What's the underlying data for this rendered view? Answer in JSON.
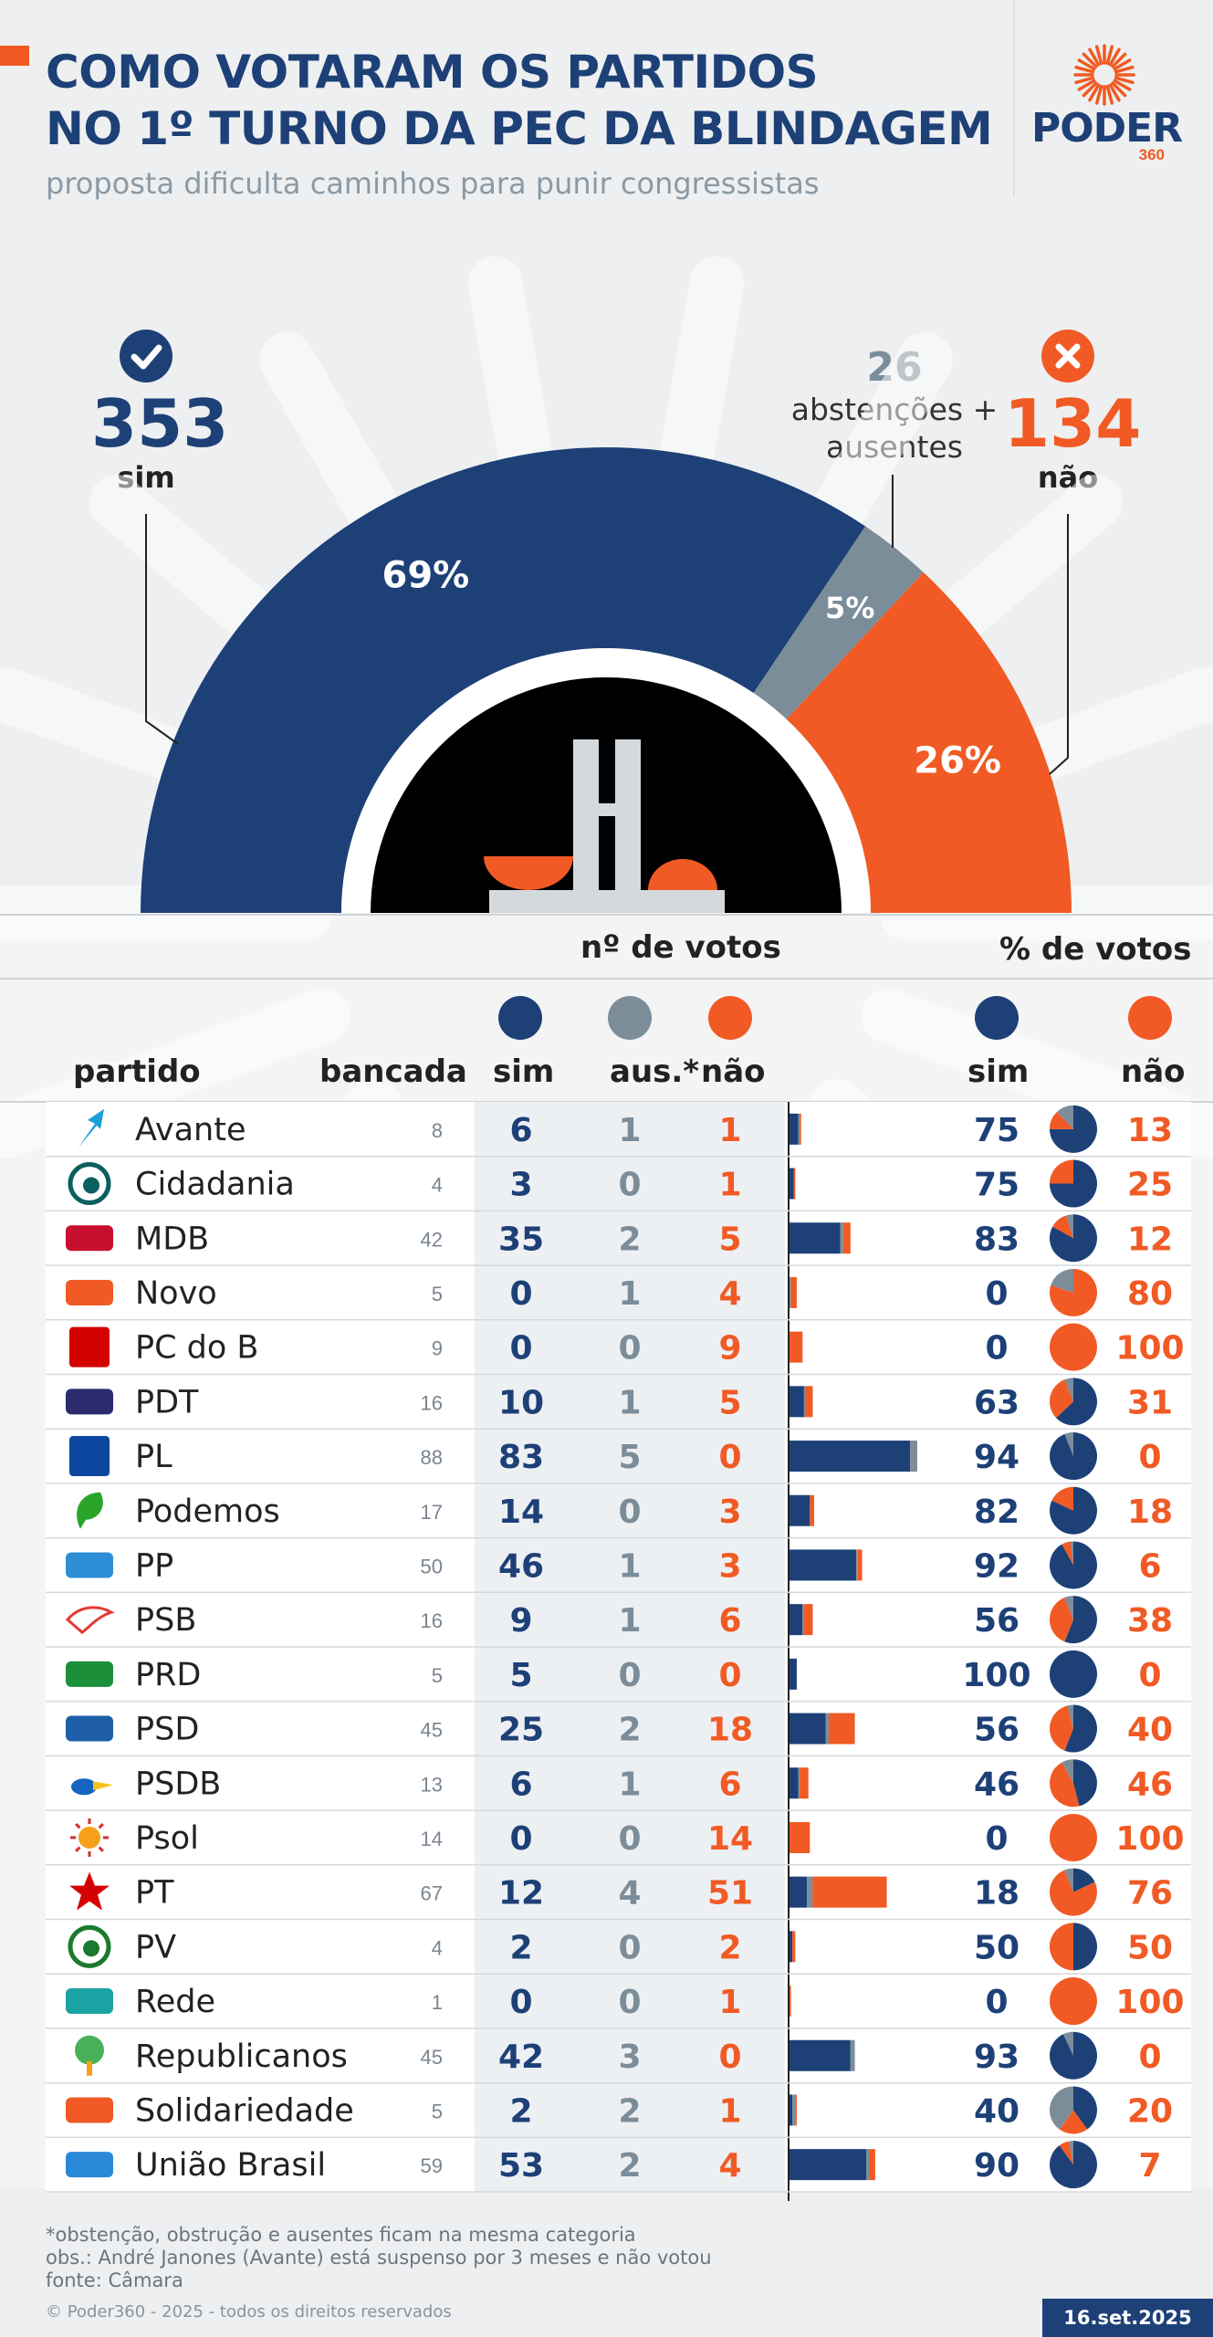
{
  "header": {
    "title_line1": "COMO VOTARAM OS PARTIDOS",
    "title_line2": "NO 1º TURNO DA PEC DA BLINDAGEM",
    "subtitle": "proposta dificulta caminhos para punir congressistas"
  },
  "brand": {
    "name": "PODER",
    "number": "360"
  },
  "totals": {
    "sim_count": "353",
    "sim_label": "sim",
    "abst_count": "26",
    "abst_line1": "abstenções +",
    "abst_line2": "ausentes",
    "nao_count": "134",
    "nao_label": "não"
  },
  "colors": {
    "sim": "#1d4077",
    "abst": "#7c8d9a",
    "nao": "#f15a24",
    "navy": "#1d4077"
  },
  "table_headers": {
    "votes_group": "nº de votos",
    "pct_group": "% de votos",
    "partido": "partido",
    "bancada": "bancada",
    "sim": "sim",
    "aus": "aus.*",
    "nao": "não",
    "pct_sim": "sim",
    "pct_nao": "não"
  },
  "chart_data": [
    {
      "type": "pie",
      "title": "",
      "categories": [
        "sim",
        "abstenções + ausentes",
        "não"
      ],
      "values": [
        353,
        26,
        134
      ],
      "percent_labels": [
        "69%",
        "5%",
        "26%"
      ],
      "colors": [
        "#1d4077",
        "#7c8d9a",
        "#f15a24"
      ]
    },
    {
      "type": "table",
      "columns": [
        "partido",
        "bancada",
        "sim",
        "aus.*",
        "não",
        "% sim",
        "% não"
      ],
      "rows": [
        {
          "party": "Avante",
          "bancada": 8,
          "sim": 6,
          "aus": 1,
          "nao": 1,
          "pct_sim": 75,
          "pct_nao": 13
        },
        {
          "party": "Cidadania",
          "bancada": 4,
          "sim": 3,
          "aus": 0,
          "nao": 1,
          "pct_sim": 75,
          "pct_nao": 25
        },
        {
          "party": "MDB",
          "bancada": 42,
          "sim": 35,
          "aus": 2,
          "nao": 5,
          "pct_sim": 83,
          "pct_nao": 12
        },
        {
          "party": "Novo",
          "bancada": 5,
          "sim": 0,
          "aus": 1,
          "nao": 4,
          "pct_sim": 0,
          "pct_nao": 80
        },
        {
          "party": "PC do B",
          "bancada": 9,
          "sim": 0,
          "aus": 0,
          "nao": 9,
          "pct_sim": 0,
          "pct_nao": 100
        },
        {
          "party": "PDT",
          "bancada": 16,
          "sim": 10,
          "aus": 1,
          "nao": 5,
          "pct_sim": 63,
          "pct_nao": 31
        },
        {
          "party": "PL",
          "bancada": 88,
          "sim": 83,
          "aus": 5,
          "nao": 0,
          "pct_sim": 94,
          "pct_nao": 0
        },
        {
          "party": "Podemos",
          "bancada": 17,
          "sim": 14,
          "aus": 0,
          "nao": 3,
          "pct_sim": 82,
          "pct_nao": 18
        },
        {
          "party": "PP",
          "bancada": 50,
          "sim": 46,
          "aus": 1,
          "nao": 3,
          "pct_sim": 92,
          "pct_nao": 6
        },
        {
          "party": "PSB",
          "bancada": 16,
          "sim": 9,
          "aus": 1,
          "nao": 6,
          "pct_sim": 56,
          "pct_nao": 38
        },
        {
          "party": "PRD",
          "bancada": 5,
          "sim": 5,
          "aus": 0,
          "nao": 0,
          "pct_sim": 100,
          "pct_nao": 0
        },
        {
          "party": "PSD",
          "bancada": 45,
          "sim": 25,
          "aus": 2,
          "nao": 18,
          "pct_sim": 56,
          "pct_nao": 40
        },
        {
          "party": "PSDB",
          "bancada": 13,
          "sim": 6,
          "aus": 1,
          "nao": 6,
          "pct_sim": 46,
          "pct_nao": 46
        },
        {
          "party": "Psol",
          "bancada": 14,
          "sim": 0,
          "aus": 0,
          "nao": 14,
          "pct_sim": 0,
          "pct_nao": 100
        },
        {
          "party": "PT",
          "bancada": 67,
          "sim": 12,
          "aus": 4,
          "nao": 51,
          "pct_sim": 18,
          "pct_nao": 76
        },
        {
          "party": "PV",
          "bancada": 4,
          "sim": 2,
          "aus": 0,
          "nao": 2,
          "pct_sim": 50,
          "pct_nao": 50
        },
        {
          "party": "Rede",
          "bancada": 1,
          "sim": 0,
          "aus": 0,
          "nao": 1,
          "pct_sim": 0,
          "pct_nao": 100
        },
        {
          "party": "Republicanos",
          "bancada": 45,
          "sim": 42,
          "aus": 3,
          "nao": 0,
          "pct_sim": 93,
          "pct_nao": 0
        },
        {
          "party": "Solidariedade",
          "bancada": 5,
          "sim": 2,
          "aus": 2,
          "nao": 1,
          "pct_sim": 40,
          "pct_nao": 20
        },
        {
          "party": "União Brasil",
          "bancada": 59,
          "sim": 53,
          "aus": 2,
          "nao": 4,
          "pct_sim": 90,
          "pct_nao": 7
        }
      ]
    }
  ],
  "party_icons": [
    "avante-arrow-icon",
    "cidadania-logo-icon",
    "mdb-logo-icon",
    "novo-logo-icon",
    "pcdob-hammer-sickle-icon",
    "pdt-logo-icon",
    "pl-logo-icon",
    "podemos-logo-icon",
    "pp-logo-icon",
    "psb-dove-icon",
    "prd-logo-icon",
    "psd-logo-icon",
    "psdb-toucan-icon",
    "psol-sun-icon",
    "pt-star-icon",
    "pv-logo-icon",
    "rede-logo-icon",
    "republicanos-tree-icon",
    "solidariedade-logo-icon",
    "uniao-brasil-logo-icon"
  ],
  "footer": {
    "note1": "*obstenção, obstrução e ausentes ficam na mesma categoria",
    "note2": "obs.: André Janones (Avante) está suspenso por 3 meses e não votou",
    "source": "fonte: Câmara",
    "copyright": "© Poder360 - 2025 - todos os direitos reservados",
    "date": "16.set.2025"
  }
}
